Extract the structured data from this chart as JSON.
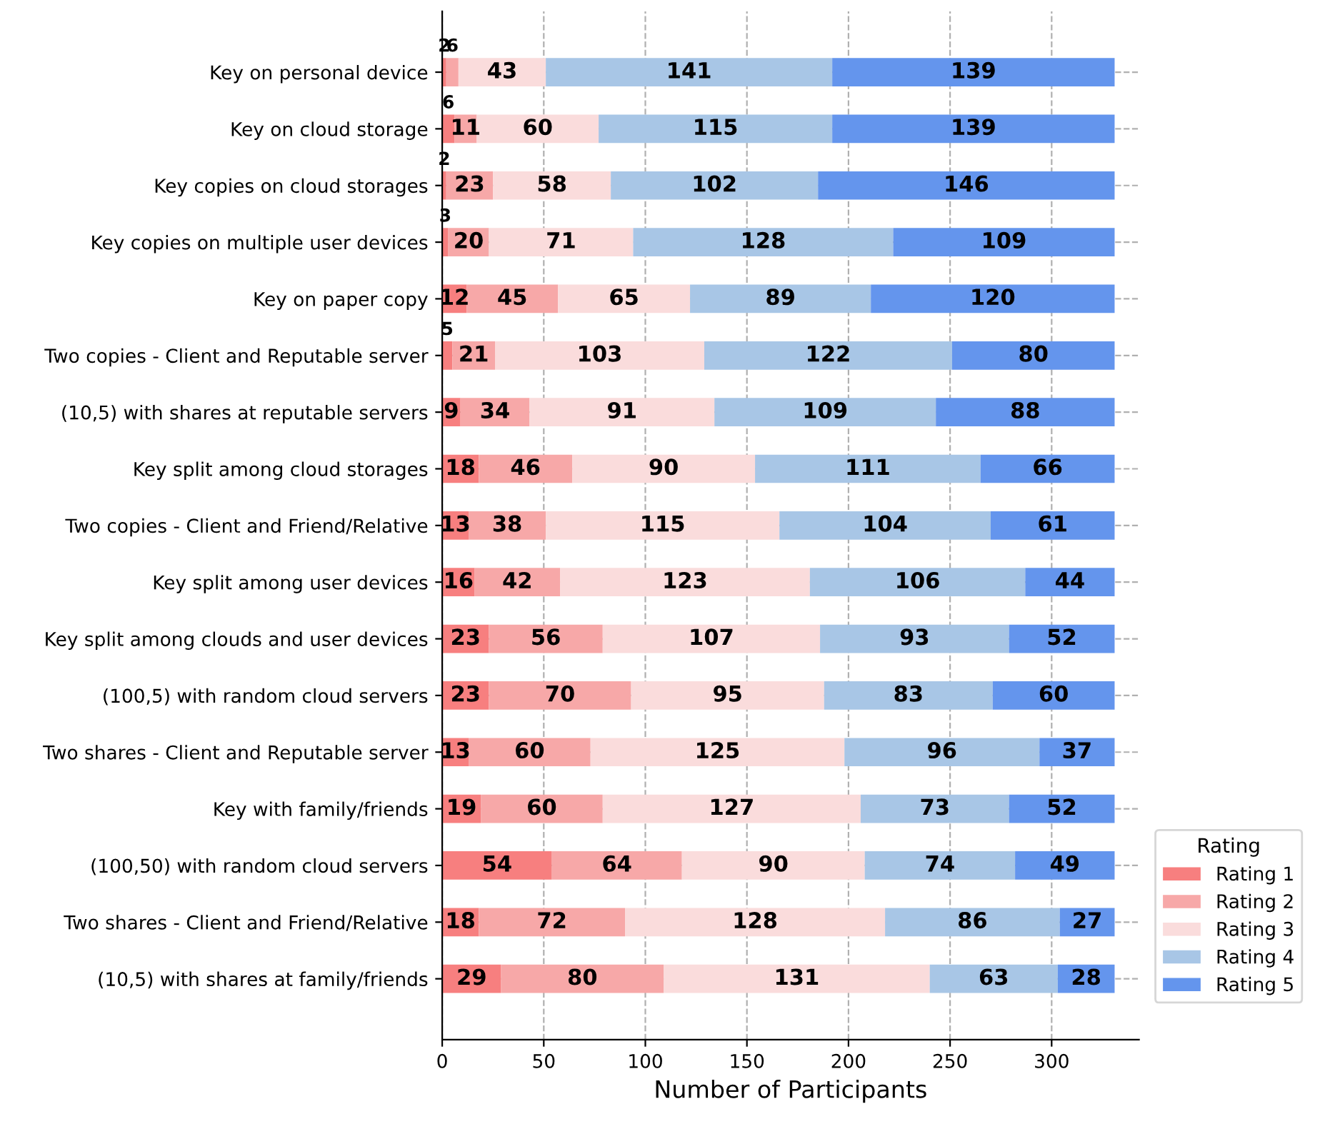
{
  "chart_data": {
    "type": "bar",
    "orientation": "horizontal",
    "stacked": true,
    "xlabel": "Number of Participants",
    "legend_title": "Rating",
    "legend": "right",
    "grid": true,
    "data_labels": true,
    "categories": [
      "Key on personal device",
      "Key on cloud storage",
      "Key copies on cloud storages",
      "Key copies on multiple user devices",
      "Key on paper copy",
      "Two copies - Client and Reputable server",
      "(10,5) with shares at reputable servers",
      "Key split among cloud storages",
      "Two copies - Client and Friend/Relative",
      "Key split among user devices",
      "Key split among clouds and user devices",
      "(100,5) with random cloud servers",
      "Two shares - Client and Reputable server",
      "Key with family/friends",
      "(100,50) with random cloud servers",
      "Two shares - Client and Friend/Relative",
      "(10,5) with shares at family/friends"
    ],
    "series": [
      {
        "name": "Rating 1",
        "color": "#f77f7f",
        "values": [
          2,
          6,
          2,
          3,
          12,
          5,
          9,
          18,
          13,
          16,
          23,
          23,
          13,
          19,
          54,
          18,
          29
        ]
      },
      {
        "name": "Rating 2",
        "color": "#f7a8a8",
        "values": [
          6,
          11,
          23,
          20,
          45,
          21,
          34,
          46,
          38,
          42,
          56,
          70,
          60,
          60,
          64,
          72,
          80
        ]
      },
      {
        "name": "Rating 3",
        "color": "#fadcdc",
        "values": [
          43,
          60,
          58,
          71,
          65,
          103,
          91,
          90,
          115,
          123,
          107,
          95,
          125,
          127,
          90,
          128,
          131
        ]
      },
      {
        "name": "Rating 4",
        "color": "#a8c6e6",
        "values": [
          141,
          115,
          102,
          128,
          89,
          122,
          109,
          111,
          104,
          106,
          93,
          83,
          96,
          73,
          74,
          86,
          63
        ]
      },
      {
        "name": "Rating 5",
        "color": "#6495ed",
        "values": [
          139,
          139,
          146,
          109,
          120,
          80,
          88,
          66,
          61,
          44,
          52,
          60,
          37,
          52,
          49,
          27,
          28
        ]
      }
    ],
    "xlim": [
      0,
      343
    ],
    "xticks": [
      0,
      50,
      100,
      150,
      200,
      250,
      300
    ]
  }
}
